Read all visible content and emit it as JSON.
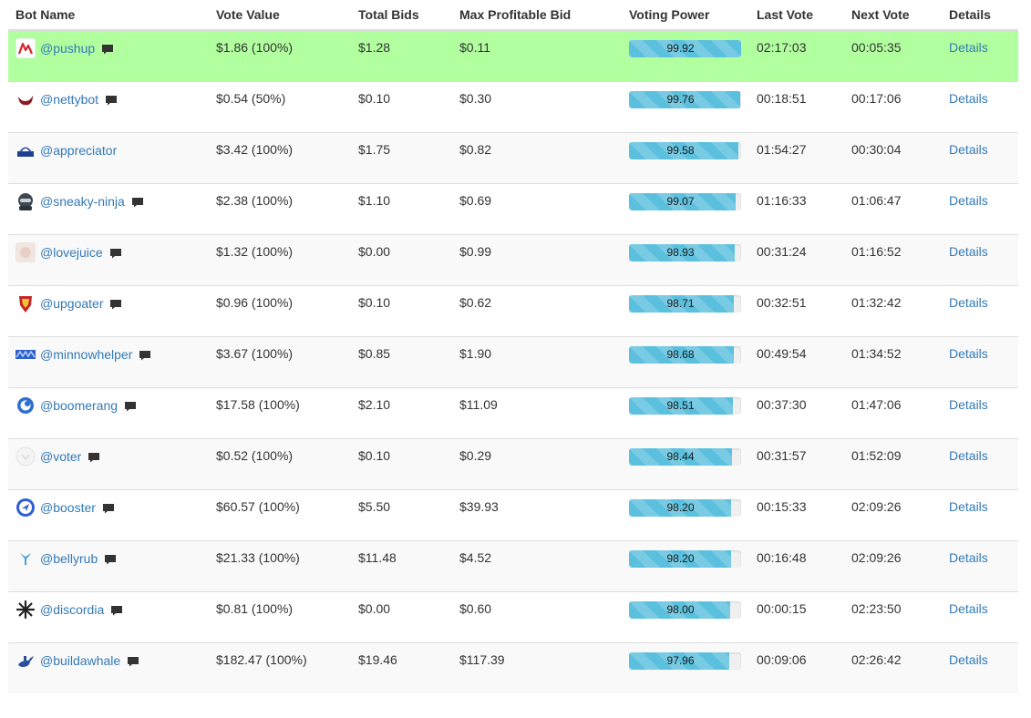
{
  "headers": {
    "bot_name": "Bot Name",
    "vote_value": "Vote Value",
    "total_bids": "Total Bids",
    "max_profitable_bid": "Max Profitable Bid",
    "voting_power": "Voting Power",
    "last_vote": "Last Vote",
    "next_vote": "Next Vote",
    "details": "Details"
  },
  "rows": [
    {
      "name": "@pushup",
      "avatar": "pushup-logo-icon",
      "has_comment": true,
      "vote_value": "$1.86 (100%)",
      "total_bids": "$1.28",
      "max_bid": "$0.11",
      "voting_power": "99.92",
      "last_vote": "02:17:03",
      "next_vote": "00:05:35",
      "details": "Details",
      "highlight": true
    },
    {
      "name": "@nettybot",
      "avatar": "nettybot-logo-icon",
      "has_comment": true,
      "vote_value": "$0.54 (50%)",
      "total_bids": "$0.10",
      "max_bid": "$0.30",
      "voting_power": "99.76",
      "last_vote": "00:18:51",
      "next_vote": "00:17:06",
      "details": "Details"
    },
    {
      "name": "@appreciator",
      "avatar": "appreciator-logo-icon",
      "has_comment": false,
      "vote_value": "$3.42 (100%)",
      "total_bids": "$1.75",
      "max_bid": "$0.82",
      "voting_power": "99.58",
      "last_vote": "01:54:27",
      "next_vote": "00:30:04",
      "details": "Details"
    },
    {
      "name": "@sneaky-ninja",
      "avatar": "sneaky-ninja-logo-icon",
      "has_comment": true,
      "vote_value": "$2.38 (100%)",
      "total_bids": "$1.10",
      "max_bid": "$0.69",
      "voting_power": "99.07",
      "last_vote": "01:16:33",
      "next_vote": "01:06:47",
      "details": "Details"
    },
    {
      "name": "@lovejuice",
      "avatar": "lovejuice-logo-icon",
      "has_comment": true,
      "vote_value": "$1.32 (100%)",
      "total_bids": "$0.00",
      "max_bid": "$0.99",
      "voting_power": "98.93",
      "last_vote": "00:31:24",
      "next_vote": "01:16:52",
      "details": "Details"
    },
    {
      "name": "@upgoater",
      "avatar": "upgoater-logo-icon",
      "has_comment": true,
      "vote_value": "$0.96 (100%)",
      "total_bids": "$0.10",
      "max_bid": "$0.62",
      "voting_power": "98.71",
      "last_vote": "00:32:51",
      "next_vote": "01:32:42",
      "details": "Details"
    },
    {
      "name": "@minnowhelper",
      "avatar": "minnowhelper-logo-icon",
      "has_comment": true,
      "vote_value": "$3.67 (100%)",
      "total_bids": "$0.85",
      "max_bid": "$1.90",
      "voting_power": "98.68",
      "last_vote": "00:49:54",
      "next_vote": "01:34:52",
      "details": "Details"
    },
    {
      "name": "@boomerang",
      "avatar": "boomerang-logo-icon",
      "has_comment": true,
      "vote_value": "$17.58 (100%)",
      "total_bids": "$2.10",
      "max_bid": "$11.09",
      "voting_power": "98.51",
      "last_vote": "00:37:30",
      "next_vote": "01:47:06",
      "details": "Details"
    },
    {
      "name": "@voter",
      "avatar": "voter-logo-icon",
      "has_comment": true,
      "vote_value": "$0.52 (100%)",
      "total_bids": "$0.10",
      "max_bid": "$0.29",
      "voting_power": "98.44",
      "last_vote": "00:31:57",
      "next_vote": "01:52:09",
      "details": "Details"
    },
    {
      "name": "@booster",
      "avatar": "booster-logo-icon",
      "has_comment": true,
      "vote_value": "$60.57 (100%)",
      "total_bids": "$5.50",
      "max_bid": "$39.93",
      "voting_power": "98.20",
      "last_vote": "00:15:33",
      "next_vote": "02:09:26",
      "details": "Details"
    },
    {
      "name": "@bellyrub",
      "avatar": "bellyrub-logo-icon",
      "has_comment": true,
      "vote_value": "$21.33 (100%)",
      "total_bids": "$11.48",
      "max_bid": "$4.52",
      "voting_power": "98.20",
      "last_vote": "00:16:48",
      "next_vote": "02:09:26",
      "details": "Details"
    },
    {
      "name": "@discordia",
      "avatar": "discordia-logo-icon",
      "has_comment": true,
      "vote_value": "$0.81 (100%)",
      "total_bids": "$0.00",
      "max_bid": "$0.60",
      "voting_power": "98.00",
      "last_vote": "00:00:15",
      "next_vote": "02:23:50",
      "details": "Details"
    },
    {
      "name": "@buildawhale",
      "avatar": "buildawhale-logo-icon",
      "has_comment": true,
      "vote_value": "$182.47 (100%)",
      "total_bids": "$19.46",
      "max_bid": "$117.39",
      "voting_power": "97.96",
      "last_vote": "00:09:06",
      "next_vote": "02:26:42",
      "details": "Details"
    }
  ],
  "colors": {
    "highlight_row": "#b1ff9f",
    "link": "#337ab7",
    "progress_fill": "#5bc0de",
    "stripe": "#f9f9f9"
  }
}
